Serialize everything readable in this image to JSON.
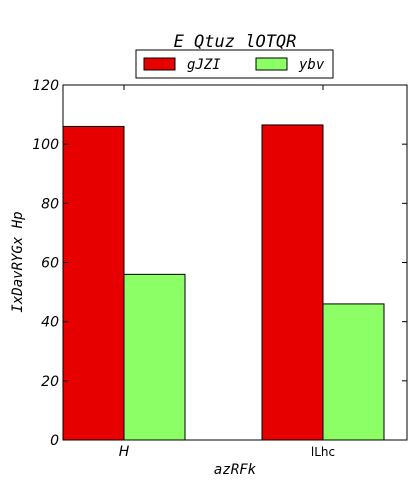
{
  "chart_data": {
    "type": "bar",
    "title": "E Qtuz lOTQR",
    "xlabel": "azRFk",
    "ylabel": "IxDavRYGx Hp",
    "categories": [
      "H",
      "lLhc"
    ],
    "series": [
      {
        "name": "gJZI",
        "values": [
          106,
          106.5
        ],
        "color": "#e60000"
      },
      {
        "name": "ybv",
        "values": [
          56,
          46
        ],
        "color": "#8cff66"
      }
    ],
    "ylim": [
      0,
      120
    ],
    "yticks": [
      0,
      20,
      40,
      60,
      80,
      100,
      120
    ],
    "grid": false,
    "legend_placement": "top-center"
  }
}
